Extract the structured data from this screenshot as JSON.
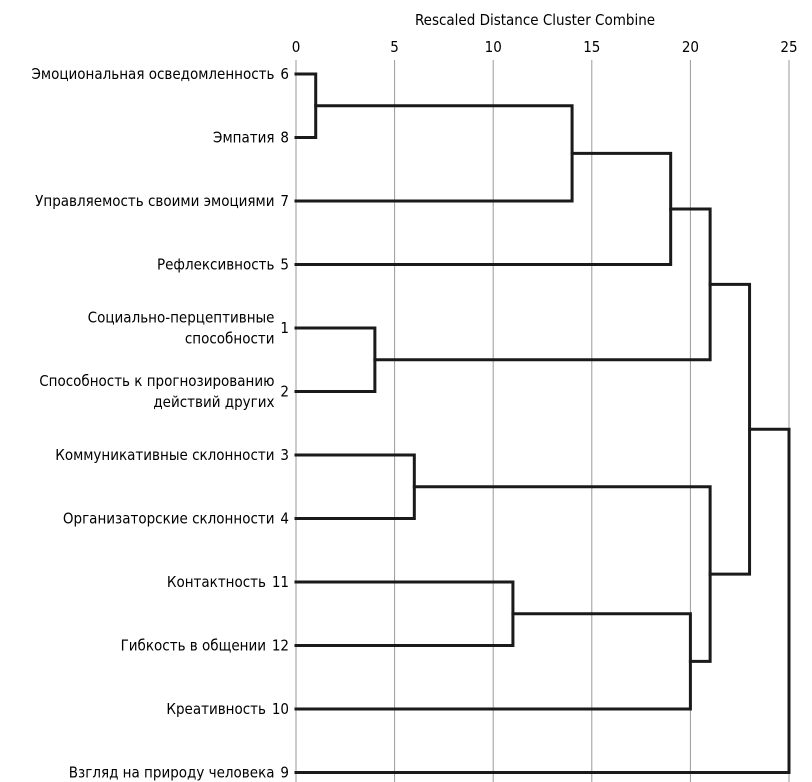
{
  "chart_data": {
    "type": "dendrogram",
    "title": "Rescaled Distance Cluster Combine",
    "xlim": [
      0,
      25
    ],
    "x_ticks": [
      0,
      5,
      10,
      15,
      20,
      25
    ],
    "grid": true,
    "leaves": [
      {
        "id": 6,
        "label": [
          "Эмоциональная осведомленность"
        ]
      },
      {
        "id": 8,
        "label": [
          "Эмпатия"
        ]
      },
      {
        "id": 7,
        "label": [
          "Управляемость своими эмоциями"
        ]
      },
      {
        "id": 5,
        "label": [
          "Рефлексивность"
        ]
      },
      {
        "id": 1,
        "label": [
          "Социально-перцептивные",
          "способности"
        ]
      },
      {
        "id": 2,
        "label": [
          "Способность к прогнозированию",
          "действий других"
        ]
      },
      {
        "id": 3,
        "label": [
          "Коммуникативные склонности"
        ]
      },
      {
        "id": 4,
        "label": [
          "Организаторские склонности"
        ]
      },
      {
        "id": 11,
        "label": [
          "Контактность"
        ]
      },
      {
        "id": 12,
        "label": [
          "Гибкость в общении"
        ]
      },
      {
        "id": 10,
        "label": [
          "Креативность"
        ]
      },
      {
        "id": 9,
        "label": [
          "Взгляд на природу человека"
        ]
      }
    ],
    "merges": [
      {
        "a": 6,
        "b": 8,
        "distance": 1
      },
      {
        "a": 1,
        "b": 2,
        "distance": 4
      },
      {
        "a": 3,
        "b": 4,
        "distance": 6
      },
      {
        "a": 11,
        "b": 12,
        "distance": 11
      },
      {
        "a": "6-8",
        "b": 7,
        "distance": 14
      },
      {
        "a": "6-8-7",
        "b": 5,
        "distance": 19
      },
      {
        "a": "11-12",
        "b": 10,
        "distance": 20
      },
      {
        "a": "6-8-7-5",
        "b": "1-2",
        "distance": 21
      },
      {
        "a": "3-4",
        "b": "11-12-10",
        "distance": 21
      },
      {
        "a": "6-8-7-5-1-2",
        "b": "3-4-11-12-10",
        "distance": 23
      },
      {
        "a": "all-but-9",
        "b": 9,
        "distance": 25
      }
    ]
  }
}
